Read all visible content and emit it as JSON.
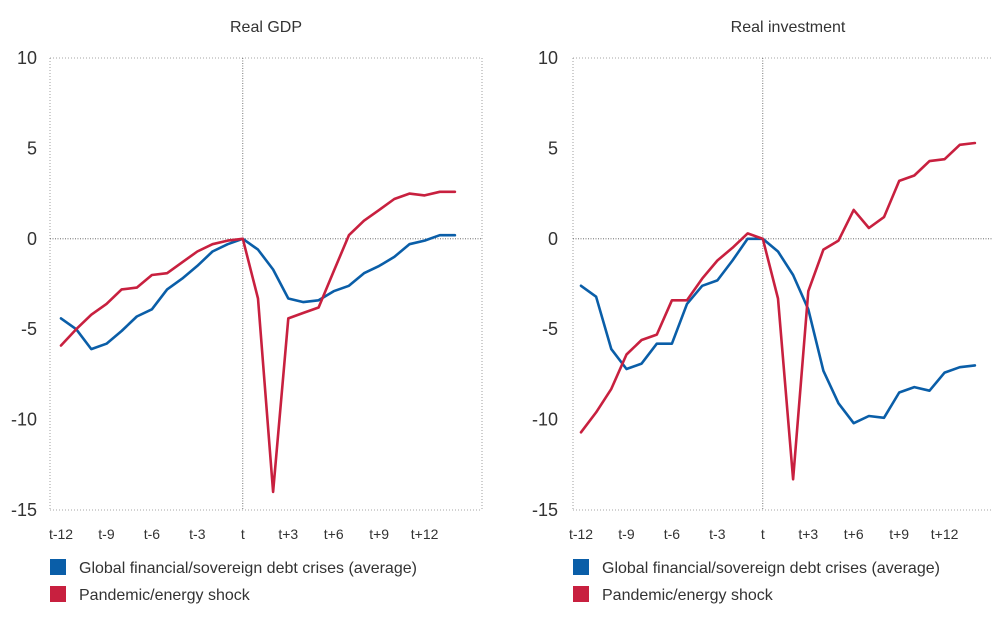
{
  "chart_data": [
    {
      "type": "line",
      "title": "Real GDP",
      "xlabel": "",
      "ylabel": "",
      "ylim": [
        -15,
        10
      ],
      "yticks": [
        10,
        5,
        0,
        -5,
        -10,
        -15
      ],
      "xtick_labels": [
        "t-12",
        "t-9",
        "t-6",
        "t-3",
        "t",
        "t+3",
        "t+6",
        "t+9",
        "t+12"
      ],
      "x": [
        -12,
        -11,
        -10,
        -9,
        -8,
        -7,
        -6,
        -5,
        -4,
        -3,
        -2,
        -1,
        0,
        1,
        2,
        3,
        4,
        5,
        6,
        7,
        8,
        9,
        10,
        11,
        12,
        13,
        14
      ],
      "grid": false,
      "legend": "bottom",
      "series": [
        {
          "name": "Global financial/sovereign debt crises (average)",
          "color": "#0a5ea8",
          "values": [
            -4.4,
            -5.0,
            -6.1,
            -5.8,
            -5.1,
            -4.3,
            -3.9,
            -2.8,
            -2.2,
            -1.5,
            -0.7,
            -0.3,
            0.0,
            -0.6,
            -1.7,
            -3.3,
            -3.5,
            -3.4,
            -2.9,
            -2.6,
            -1.9,
            -1.5,
            -1.0,
            -0.3,
            -0.1,
            0.2,
            0.2
          ]
        },
        {
          "name": "Pandemic/energy shock",
          "color": "#c8203f",
          "values": [
            -5.9,
            -5.0,
            -4.2,
            -3.6,
            -2.8,
            -2.7,
            -2.0,
            -1.9,
            -1.3,
            -0.7,
            -0.3,
            -0.1,
            0.0,
            -3.3,
            -14.0,
            -4.4,
            -4.1,
            -3.8,
            -1.8,
            0.2,
            1.0,
            1.6,
            2.2,
            2.5,
            2.4,
            2.6,
            2.6
          ]
        }
      ]
    },
    {
      "type": "line",
      "title": "Real investment",
      "xlabel": "",
      "ylabel": "",
      "ylim": [
        -15,
        10
      ],
      "yticks": [
        10,
        5,
        0,
        -5,
        -10,
        -15
      ],
      "xtick_labels": [
        "t-12",
        "t-9",
        "t-6",
        "t-3",
        "t",
        "t+3",
        "t+6",
        "t+9",
        "t+12"
      ],
      "x": [
        -12,
        -11,
        -10,
        -9,
        -8,
        -7,
        -6,
        -5,
        -4,
        -3,
        -2,
        -1,
        0,
        1,
        2,
        3,
        4,
        5,
        6,
        7,
        8,
        9,
        10,
        11,
        12,
        13,
        14
      ],
      "grid": false,
      "legend": "bottom",
      "series": [
        {
          "name": "Global financial/sovereign debt crises (average)",
          "color": "#0a5ea8",
          "values": [
            -2.6,
            -3.2,
            -6.1,
            -7.2,
            -6.9,
            -5.8,
            -5.8,
            -3.6,
            -2.6,
            -2.3,
            -1.2,
            0.0,
            0.0,
            -0.7,
            -2.0,
            -3.9,
            -7.3,
            -9.1,
            -10.2,
            -9.8,
            -9.9,
            -8.5,
            -8.2,
            -8.4,
            -7.4,
            -7.1,
            -7.0
          ]
        },
        {
          "name": "Pandemic/energy shock",
          "color": "#c8203f",
          "values": [
            -10.7,
            -9.6,
            -8.3,
            -6.4,
            -5.6,
            -5.3,
            -3.4,
            -3.4,
            -2.2,
            -1.2,
            -0.5,
            0.3,
            0.0,
            -3.3,
            -13.3,
            -2.9,
            -0.6,
            -0.1,
            1.6,
            0.6,
            1.2,
            3.2,
            3.5,
            4.3,
            4.4,
            5.2,
            5.3
          ]
        }
      ]
    }
  ]
}
